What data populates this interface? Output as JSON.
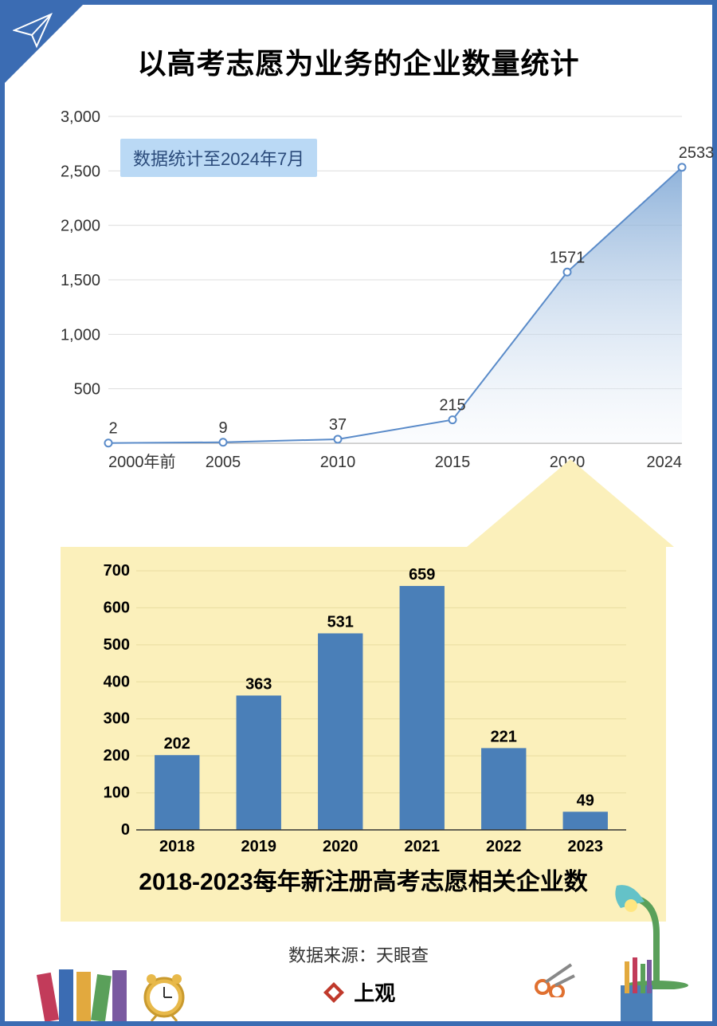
{
  "title": "以高考志愿为业务的企业数量统计",
  "badge": "数据统计至2024年7月",
  "area_chart": {
    "type": "area",
    "x_labels": [
      "2000年前",
      "2005",
      "2010",
      "2015",
      "2020",
      "2024"
    ],
    "values": [
      2,
      9,
      37,
      215,
      1571,
      2533
    ],
    "ylim": [
      0,
      3000
    ],
    "ytick_step": 500,
    "yticks": [
      500,
      1000,
      1500,
      2000,
      2500,
      3000
    ],
    "ytick_labels": [
      "500",
      "1,000",
      "1,500",
      "2,000",
      "2,500",
      "3,000"
    ],
    "line_color": "#5a8bc9",
    "fill_top": "#7ba5d4",
    "fill_bottom": "#f2f6fb",
    "marker_fill": "#ffffff",
    "marker_stroke": "#5a8bc9",
    "grid_color": "#dddddd",
    "label_fontsize": 20,
    "background": "#ffffff"
  },
  "bar_chart": {
    "type": "bar",
    "title": "2018-2023每年新注册高考志愿相关企业数",
    "categories": [
      "2018",
      "2019",
      "2020",
      "2021",
      "2022",
      "2023"
    ],
    "values": [
      202,
      363,
      531,
      659,
      221,
      49
    ],
    "ylim": [
      0,
      700
    ],
    "ytick_step": 100,
    "bar_color": "#4a7fb8",
    "grid_color": "#e8dca0",
    "panel_background": "#fbf0bb",
    "label_fontsize": 20,
    "title_fontsize": 30,
    "bar_width": 0.55
  },
  "source_label": "数据来源：",
  "source_value": "天眼查",
  "logo_text": "上观",
  "frame_color": "#3b6cb3"
}
